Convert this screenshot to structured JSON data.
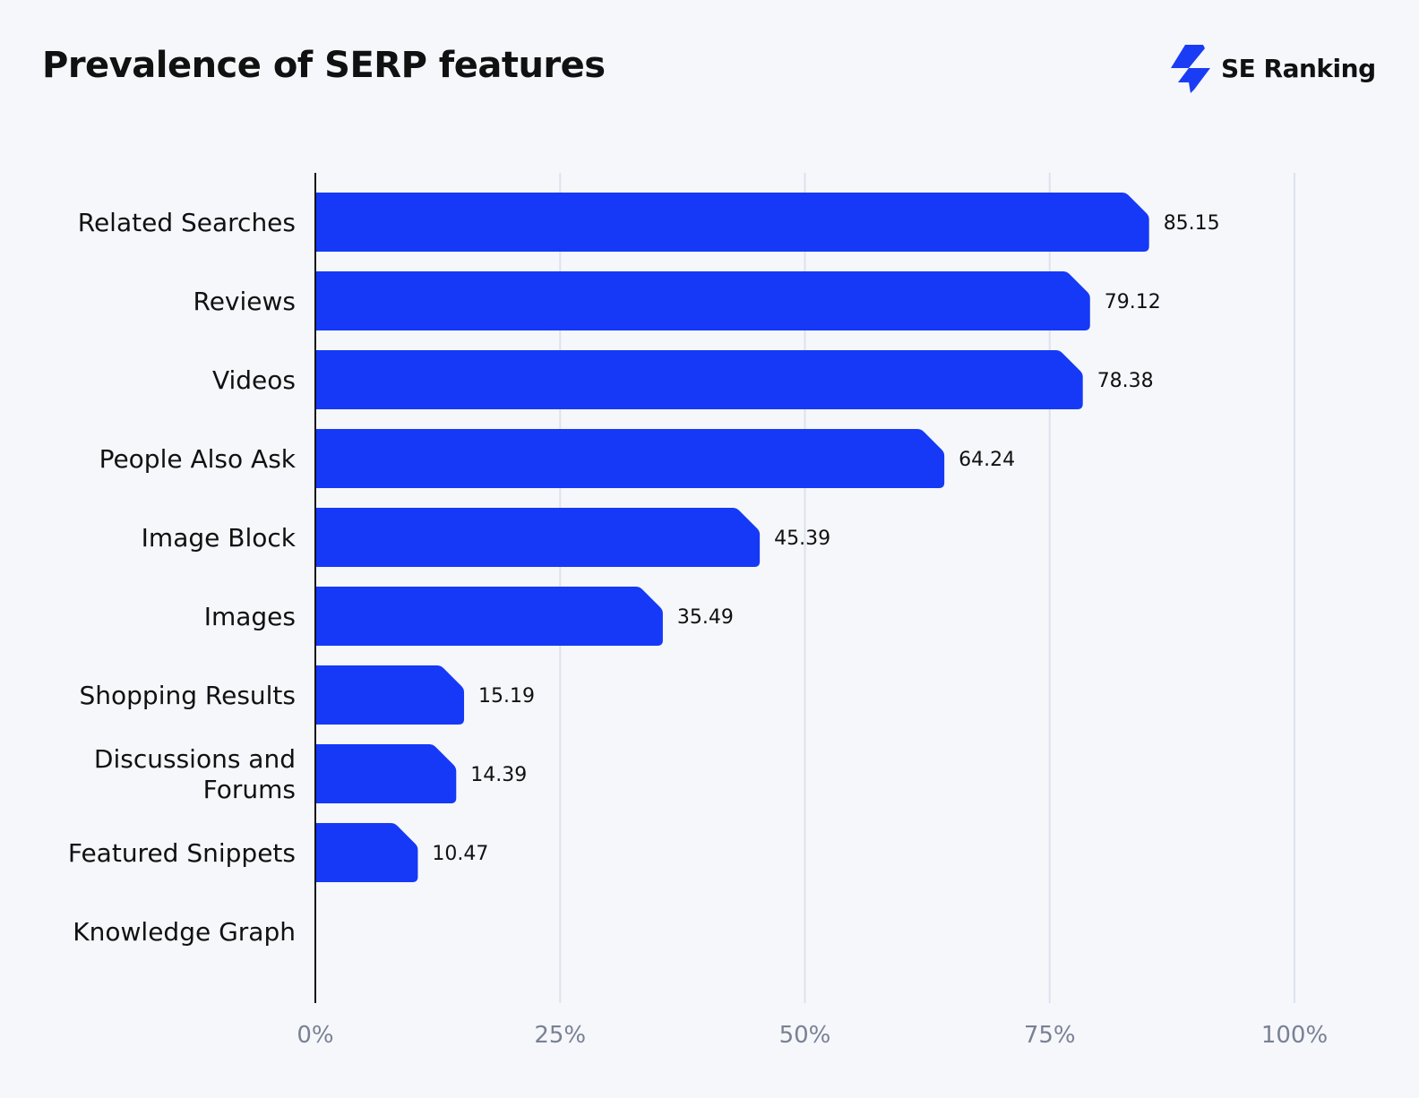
{
  "title": "Prevalence of SERP features",
  "logo": {
    "text": "SE Ranking",
    "icon": "se-ranking-bolt-icon",
    "color": "#1a3cf5"
  },
  "chart_data": {
    "type": "bar",
    "orientation": "horizontal",
    "title": "Prevalence of SERP features",
    "categories": [
      [
        "Related Searches"
      ],
      [
        "Reviews"
      ],
      [
        "Videos"
      ],
      [
        "People Also Ask"
      ],
      [
        "Image Block"
      ],
      [
        "Images"
      ],
      [
        "Shopping Results"
      ],
      [
        "Discussions and",
        "Forums"
      ],
      [
        "Featured Snippets"
      ],
      [
        "Knowledge Graph"
      ]
    ],
    "values": [
      85.15,
      79.12,
      78.38,
      64.24,
      45.39,
      35.49,
      15.19,
      14.39,
      10.47,
      null
    ],
    "value_labels": [
      "85.15",
      "79.12",
      "78.38",
      "64.24",
      "45.39",
      "35.49",
      "15.19",
      "14.39",
      "10.47",
      ""
    ],
    "xlim": [
      0,
      100
    ],
    "xticks": [
      0,
      25,
      50,
      75,
      100
    ],
    "xtick_labels": [
      "0%",
      "25%",
      "50%",
      "75%",
      "100%"
    ],
    "grid": "vertical",
    "bar_color": "#1539f7",
    "grid_color": "#dde2ee",
    "xlabel": "",
    "ylabel": ""
  }
}
